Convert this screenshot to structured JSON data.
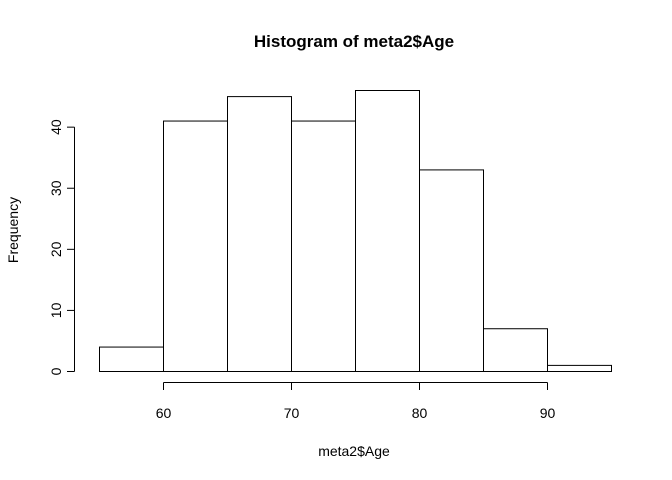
{
  "chart_data": {
    "type": "bar",
    "title": "Histogram of meta2$Age",
    "xlabel": "meta2$Age",
    "ylabel": "Frequency",
    "bins": [
      {
        "from": 55,
        "to": 60,
        "count": 4
      },
      {
        "from": 60,
        "to": 65,
        "count": 41
      },
      {
        "from": 65,
        "to": 70,
        "count": 45
      },
      {
        "from": 70,
        "to": 75,
        "count": 41
      },
      {
        "from": 75,
        "to": 80,
        "count": 46
      },
      {
        "from": 80,
        "to": 85,
        "count": 33
      },
      {
        "from": 85,
        "to": 90,
        "count": 7
      },
      {
        "from": 90,
        "to": 95,
        "count": 1
      }
    ],
    "x_ticks": [
      60,
      70,
      80,
      90
    ],
    "y_ticks": [
      0,
      10,
      20,
      30,
      40
    ],
    "xlim": [
      55,
      95
    ],
    "ylim": [
      0,
      46
    ],
    "grid": false,
    "legend": "none",
    "colors": {
      "bar_fill": "#ffffff",
      "bar_stroke": "#000000"
    }
  }
}
